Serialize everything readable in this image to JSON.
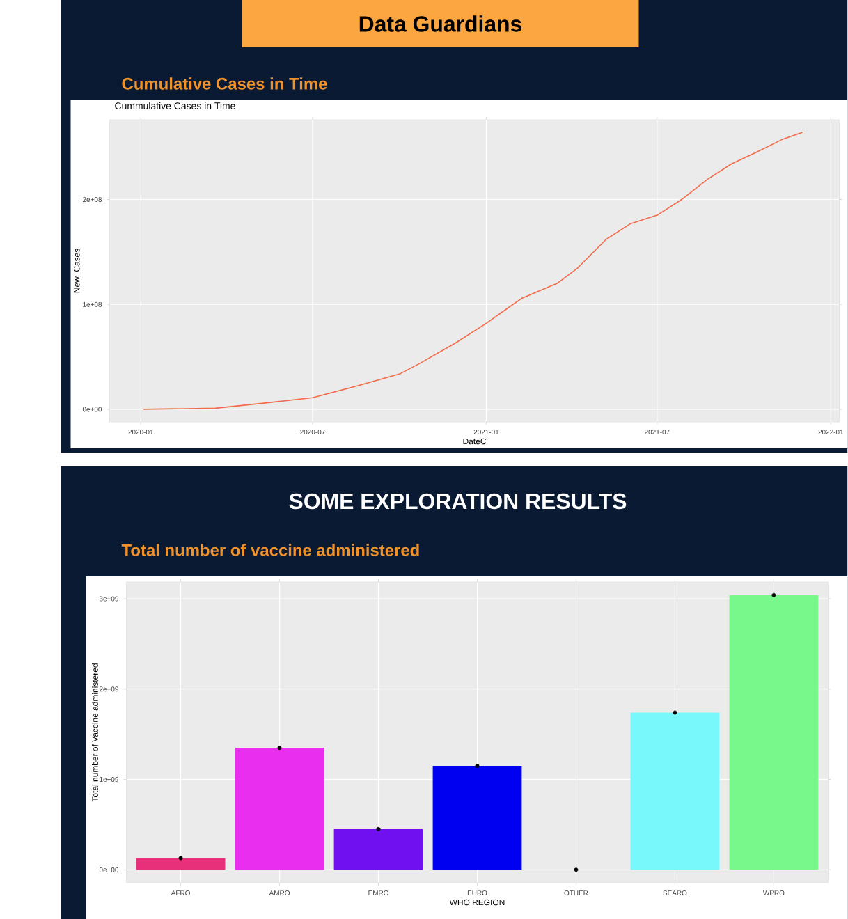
{
  "chart_data": [
    {
      "type": "line",
      "title": "Cumulative Cases in Time",
      "subtitle": "Cummulative Cases in Time",
      "xlabel": "DateC",
      "ylabel": "New_Cases",
      "annotations": [
        "Data Guardians"
      ],
      "x": [
        "2020-01-04",
        "2020-03-20",
        "2020-05-12",
        "2020-07-01",
        "2020-08-16",
        "2020-10-02",
        "2020-10-23",
        "2020-11-29",
        "2021-01-01",
        "2021-01-23",
        "2021-02-08",
        "2021-03-17",
        "2021-04-07",
        "2021-05-08",
        "2021-06-03",
        "2021-07-01",
        "2021-07-27",
        "2021-08-23",
        "2021-09-18",
        "2021-10-14",
        "2021-11-10",
        "2021-12-02"
      ],
      "series": [
        {
          "color": "#f26b4a",
          "values": [
            0,
            1000000,
            6000000,
            11000000,
            22000000,
            34000000,
            44000000,
            63000000,
            82000000,
            96000000,
            106000000,
            120000000,
            134000000,
            162000000,
            177000000,
            185000000,
            200000000,
            219000000,
            234000000,
            245000000,
            257000000,
            264000000
          ]
        }
      ],
      "xlim": [
        "2019-11-29",
        "2022-01-10"
      ],
      "xticks": [
        "2020-01",
        "2020-07",
        "2021-01",
        "2021-07",
        "2022-01"
      ],
      "ylim": [
        -12000000,
        276000000
      ],
      "yticks": [
        {
          "value": 0,
          "label": "0e+00"
        },
        {
          "value": 100000000,
          "label": "1e+08"
        },
        {
          "value": 200000000,
          "label": "2e+08"
        }
      ],
      "grid": true,
      "line_style": "solid",
      "marker": "none"
    },
    {
      "type": "bar",
      "title": "SOME EXPLORATION RESULTS",
      "subtitle": "Total number of vaccine administered",
      "xlabel": "WHO REGION",
      "ylabel": "Total number of Vaccine administered",
      "categories": [
        "AFRO",
        "AMRO",
        "EMRO",
        "EURO",
        "OTHER",
        "SEARO",
        "WPRO"
      ],
      "series": [
        {
          "type": "bar",
          "colors": [
            "#e8307a",
            "#ea2ef0",
            "#7010f0",
            "#0000f0",
            "#999999",
            "#78f8fa",
            "#78f88a"
          ],
          "values": [
            130000000,
            1350000000,
            450000000,
            1150000000,
            0,
            1740000000,
            3040000000
          ]
        },
        {
          "type": "scatter",
          "color": "#000000",
          "marker": "circle",
          "x": [
            "AFRO",
            "AMRO",
            "EMRO",
            "EURO",
            "OTHER",
            "SEARO",
            "WPRO"
          ],
          "values": [
            130000000,
            1350000000,
            450000000,
            1150000000,
            0,
            1740000000,
            3040000000
          ]
        }
      ],
      "ylim": [
        -144000000,
        3185000000
      ],
      "yticks": [
        {
          "value": 0,
          "label": "0e+00"
        },
        {
          "value": 1000000000,
          "label": "1e+09"
        },
        {
          "value": 2000000000,
          "label": "2e+09"
        },
        {
          "value": 3000000000,
          "label": "3e+09"
        }
      ],
      "grid": true
    }
  ]
}
